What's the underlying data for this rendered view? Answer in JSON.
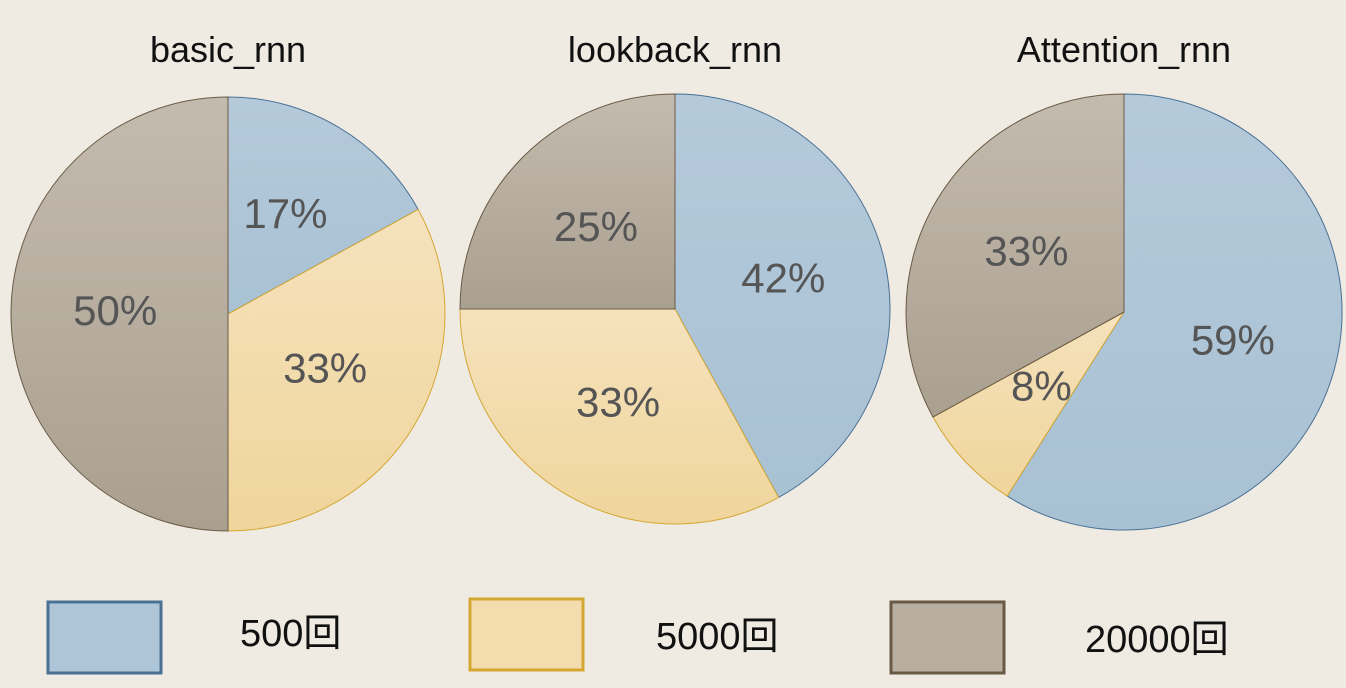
{
  "colors": {
    "background": "#efebe3",
    "series_500": "#adc5d6",
    "series_500_stroke": "#4a7194",
    "series_5000": "#f3dcae",
    "series_5000_stroke": "#d4a733",
    "series_20000": "#b9afa0",
    "series_20000_stroke": "#6a5a45"
  },
  "legend": {
    "items": [
      {
        "label": "500回",
        "color_key": "series_500"
      },
      {
        "label": "5000回",
        "color_key": "series_5000"
      },
      {
        "label": "20000回",
        "color_key": "series_20000"
      }
    ],
    "position": "bottom"
  },
  "chart_data": [
    {
      "type": "pie",
      "title": "basic_rnn",
      "categories": [
        "500回",
        "5000回",
        "20000回"
      ],
      "values": [
        17,
        33,
        50
      ],
      "labels": [
        "17%",
        "33%",
        "50%"
      ]
    },
    {
      "type": "pie",
      "title": "lookback_rnn",
      "categories": [
        "500回",
        "5000回",
        "20000回"
      ],
      "values": [
        42,
        33,
        25
      ],
      "labels": [
        "42%",
        "33%",
        "25%"
      ]
    },
    {
      "type": "pie",
      "title": "Attention_rnn",
      "categories": [
        "500回",
        "5000回",
        "20000回"
      ],
      "values": [
        59,
        8,
        33
      ],
      "labels": [
        "59%",
        "8%",
        "33%"
      ]
    }
  ]
}
